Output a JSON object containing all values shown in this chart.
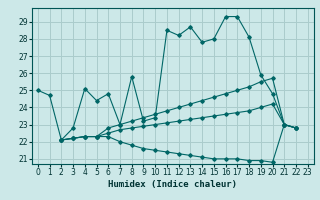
{
  "bg_color": "#cce8e8",
  "grid_color": "#aacccc",
  "line_color": "#006666",
  "xlabel": "Humidex (Indice chaleur)",
  "xlim": [
    -0.5,
    23.5
  ],
  "ylim": [
    20.7,
    29.8
  ],
  "yticks": [
    21,
    22,
    23,
    24,
    25,
    26,
    27,
    28,
    29
  ],
  "xticks": [
    0,
    1,
    2,
    3,
    4,
    5,
    6,
    7,
    8,
    9,
    10,
    11,
    12,
    13,
    14,
    15,
    16,
    17,
    18,
    19,
    20,
    21,
    22,
    23
  ],
  "s1_x": [
    0,
    1,
    2,
    3,
    4,
    5,
    6,
    7,
    8,
    9,
    10,
    11,
    12,
    13,
    14,
    15,
    16,
    17,
    18,
    19,
    20,
    21,
    22
  ],
  "s1_y": [
    25.0,
    24.7,
    22.1,
    22.8,
    25.1,
    24.4,
    24.8,
    23.0,
    25.8,
    23.2,
    23.4,
    28.5,
    28.2,
    28.7,
    27.8,
    28.0,
    29.3,
    29.3,
    28.1,
    25.9,
    24.8,
    23.0,
    22.8
  ],
  "s2_x": [
    2,
    3,
    4,
    5,
    6,
    7,
    8,
    9,
    10,
    11,
    12,
    13,
    14,
    15,
    16,
    17,
    18,
    19,
    20,
    21,
    22
  ],
  "s2_y": [
    22.1,
    22.2,
    22.3,
    22.3,
    22.8,
    23.0,
    23.2,
    23.4,
    23.6,
    23.8,
    24.0,
    24.2,
    24.4,
    24.6,
    24.8,
    25.0,
    25.2,
    25.5,
    25.7,
    23.0,
    22.8
  ],
  "s3_x": [
    2,
    3,
    4,
    5,
    6,
    7,
    8,
    9,
    10,
    11,
    12,
    13,
    14,
    15,
    16,
    17,
    18,
    19,
    20,
    21,
    22
  ],
  "s3_y": [
    22.1,
    22.2,
    22.3,
    22.3,
    22.3,
    22.0,
    21.8,
    21.6,
    21.5,
    21.4,
    21.3,
    21.2,
    21.1,
    21.0,
    21.0,
    21.0,
    20.9,
    20.9,
    20.8,
    23.0,
    22.8
  ],
  "s4_x": [
    2,
    3,
    4,
    5,
    6,
    7,
    8,
    9,
    10,
    11,
    12,
    13,
    14,
    15,
    16,
    17,
    18,
    19,
    20,
    21,
    22
  ],
  "s4_y": [
    22.1,
    22.2,
    22.3,
    22.3,
    22.5,
    22.7,
    22.8,
    22.9,
    23.0,
    23.1,
    23.2,
    23.3,
    23.4,
    23.5,
    23.6,
    23.7,
    23.8,
    24.0,
    24.2,
    23.0,
    22.8
  ]
}
